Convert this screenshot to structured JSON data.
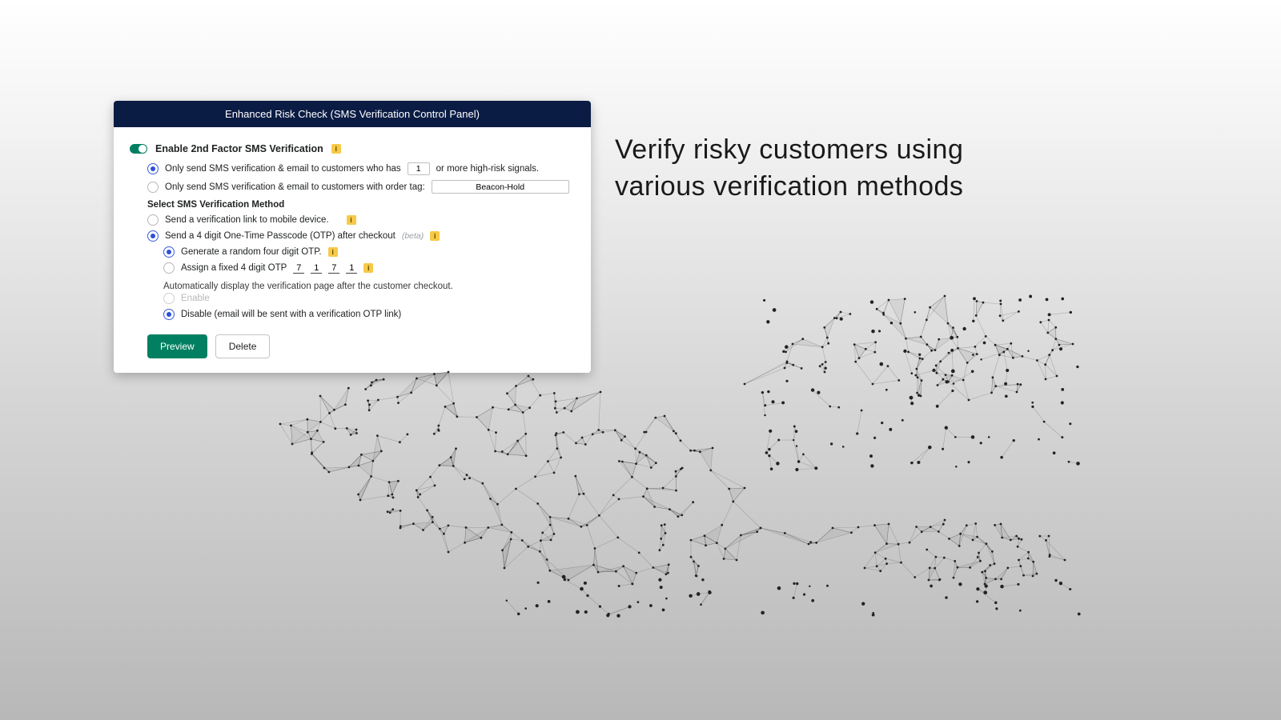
{
  "panel": {
    "title": "Enhanced Risk Check (SMS Verification Control Panel)",
    "header_bg": "#0b1c44",
    "header_color": "#ffffff",
    "toggle": {
      "enabled": true,
      "label": "Enable 2nd Factor SMS Verification",
      "color_on": "#008060"
    },
    "send_conditions": {
      "high_risk": {
        "selected": true,
        "text_before": "Only send SMS verification & email to customers who has",
        "value": "1",
        "text_after": "or more high-risk signals."
      },
      "order_tag": {
        "selected": false,
        "text_before": "Only send SMS verification & email to customers with order tag:",
        "value": "Beacon-Hold"
      }
    },
    "method_section_label": "Select SMS Verification Method",
    "methods": {
      "link": {
        "selected": false,
        "label": "Send a verification link to mobile device."
      },
      "otp": {
        "selected": true,
        "label": "Send a 4 digit One-Time Passcode (OTP) after checkout",
        "beta_label": "(beta)",
        "sub": {
          "random": {
            "selected": true,
            "label": "Generate a random four digit OTP."
          },
          "fixed": {
            "selected": false,
            "label": "Assign a fixed 4 digit OTP",
            "digits": [
              "7",
              "1",
              "7",
              "1"
            ]
          }
        },
        "auto_display_note": "Automatically display the verification page after the customer checkout.",
        "auto_display": {
          "enable": {
            "selected": false,
            "disabled": true,
            "label": "Enable"
          },
          "disable": {
            "selected": true,
            "label": "Disable (email will be sent with a verification OTP link)"
          }
        }
      }
    },
    "buttons": {
      "preview": "Preview",
      "delete": "Delete",
      "primary_bg": "#008060"
    }
  },
  "headline": {
    "line1": "Verify risky customers using",
    "line2": "various verification methods",
    "color": "#1a1a1a",
    "fontsize": 34
  },
  "info_badge": {
    "glyph": "i",
    "bg": "#f7c948"
  },
  "whale": {
    "stroke": "rgba(80,80,80,0.35)",
    "fill": "rgba(120,120,120,0.10)",
    "dot_color": "#222222"
  }
}
